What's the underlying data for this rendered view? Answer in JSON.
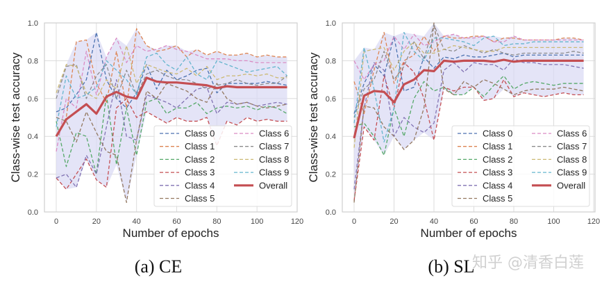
{
  "colors": {
    "classes": [
      "#4C72B0",
      "#DD8452",
      "#55A868",
      "#C44E52",
      "#8172B3",
      "#937860",
      "#DA8BC3",
      "#8C8C8C",
      "#CCB974",
      "#64B5CD"
    ],
    "overall": "#C44E52",
    "band": "#d9d9f3",
    "grid": "#dcdcdc"
  },
  "watermark": "知乎 @清香白莲",
  "chart_data": [
    {
      "type": "line",
      "caption": "(a) CE",
      "xlabel": "Number of epochs",
      "ylabel": "Class-wise test accuracy",
      "xlim": [
        -5,
        120
      ],
      "ylim": [
        0.0,
        1.0
      ],
      "xticks": [
        "0",
        "20",
        "40",
        "60",
        "80",
        "100",
        "120"
      ],
      "yticks": [
        "0.0",
        "0.2",
        "0.4",
        "0.6",
        "0.8",
        "1.0"
      ],
      "grid": true,
      "legend_position": "lower-right",
      "shaded_band": "min-max across classes",
      "x": [
        0,
        5,
        10,
        15,
        20,
        25,
        30,
        35,
        40,
        45,
        50,
        55,
        60,
        65,
        70,
        75,
        80,
        85,
        90,
        95,
        100,
        105,
        110,
        115
      ],
      "series": [
        {
          "name": "Class 0",
          "style": "dashed",
          "values": [
            0.53,
            0.55,
            0.62,
            0.7,
            0.95,
            0.7,
            0.6,
            0.55,
            0.63,
            0.78,
            0.65,
            0.75,
            0.7,
            0.72,
            0.75,
            0.76,
            0.63,
            0.68,
            0.68,
            0.68,
            0.68,
            0.69,
            0.68,
            0.67
          ]
        },
        {
          "name": "Class 1",
          "style": "dashed",
          "values": [
            0.4,
            0.5,
            0.9,
            0.91,
            0.68,
            0.58,
            0.85,
            0.55,
            0.97,
            0.88,
            0.85,
            0.86,
            0.88,
            0.82,
            0.86,
            0.83,
            0.85,
            0.83,
            0.83,
            0.84,
            0.82,
            0.83,
            0.82,
            0.82
          ]
        },
        {
          "name": "Class 2",
          "style": "dashed",
          "values": [
            0.48,
            0.24,
            0.42,
            0.4,
            0.2,
            0.62,
            0.25,
            0.55,
            0.3,
            0.58,
            0.6,
            0.52,
            0.55,
            0.55,
            0.58,
            0.52,
            0.55,
            0.56,
            0.55,
            0.56,
            0.54,
            0.56,
            0.55,
            0.52
          ]
        },
        {
          "name": "Class 3",
          "style": "dashed",
          "values": [
            0.18,
            0.12,
            0.2,
            0.28,
            0.17,
            0.13,
            0.55,
            0.6,
            0.5,
            0.53,
            0.5,
            0.47,
            0.5,
            0.48,
            0.48,
            0.5,
            0.35,
            0.48,
            0.46,
            0.5,
            0.48,
            0.49,
            0.48,
            0.48
          ]
        },
        {
          "name": "Class 4",
          "style": "dashed",
          "values": [
            0.18,
            0.2,
            0.13,
            0.3,
            0.2,
            0.45,
            0.7,
            0.4,
            0.38,
            0.62,
            0.6,
            0.58,
            0.55,
            0.6,
            0.65,
            0.66,
            0.52,
            0.58,
            0.57,
            0.58,
            0.56,
            0.57,
            0.58,
            0.57
          ]
        },
        {
          "name": "Class 5",
          "style": "dashed",
          "values": [
            0.5,
            0.48,
            0.37,
            0.53,
            0.42,
            0.32,
            0.3,
            0.05,
            0.38,
            0.64,
            0.6,
            0.68,
            0.66,
            0.64,
            0.6,
            0.58,
            0.68,
            0.6,
            0.57,
            0.58,
            0.56,
            0.55,
            0.56,
            0.57
          ]
        },
        {
          "name": "Class 6",
          "style": "dashed",
          "values": [
            0.32,
            0.6,
            0.55,
            0.85,
            0.62,
            0.82,
            0.92,
            0.79,
            0.88,
            0.85,
            0.86,
            0.88,
            0.86,
            0.85,
            0.83,
            0.81,
            0.81,
            0.81,
            0.8,
            0.8,
            0.79,
            0.79,
            0.79,
            0.79
          ]
        },
        {
          "name": "Class 7",
          "style": "dashed",
          "values": [
            0.6,
            0.77,
            0.78,
            0.6,
            0.72,
            0.78,
            0.6,
            0.75,
            0.62,
            0.73,
            0.75,
            0.72,
            0.7,
            0.7,
            0.68,
            0.65,
            0.67,
            0.68,
            0.7,
            0.68,
            0.67,
            0.68,
            0.68,
            0.72
          ]
        },
        {
          "name": "Class 8",
          "style": "dashed",
          "values": [
            0.63,
            0.78,
            0.77,
            0.63,
            0.6,
            0.7,
            0.65,
            0.88,
            0.68,
            0.78,
            0.76,
            0.74,
            0.73,
            0.76,
            0.72,
            0.77,
            0.7,
            0.72,
            0.72,
            0.73,
            0.72,
            0.73,
            0.71,
            0.71
          ]
        },
        {
          "name": "Class 9",
          "style": "dashed",
          "values": [
            0.45,
            0.72,
            0.6,
            0.62,
            0.66,
            0.8,
            0.75,
            0.7,
            0.62,
            0.82,
            0.84,
            0.78,
            0.75,
            0.82,
            0.73,
            0.7,
            0.8,
            0.78,
            0.76,
            0.74,
            0.75,
            0.76,
            0.77,
            0.72
          ]
        },
        {
          "name": "Overall",
          "style": "solid",
          "values": [
            0.4,
            0.49,
            0.53,
            0.57,
            0.52,
            0.61,
            0.635,
            0.61,
            0.6,
            0.71,
            0.69,
            0.685,
            0.685,
            0.68,
            0.675,
            0.67,
            0.655,
            0.665,
            0.66,
            0.66,
            0.66,
            0.66,
            0.66,
            0.66
          ]
        }
      ]
    },
    {
      "type": "line",
      "caption": "(b) SL",
      "xlabel": "Number of epochs",
      "ylabel": "Class-wise test accuracy",
      "xlim": [
        -5,
        120
      ],
      "ylim": [
        0.0,
        1.0
      ],
      "xticks": [
        "0",
        "20",
        "40",
        "60",
        "80",
        "100",
        "120"
      ],
      "yticks": [
        "0.0",
        "0.2",
        "0.4",
        "0.6",
        "0.8",
        "1.0"
      ],
      "grid": true,
      "legend_position": "lower-right",
      "shaded_band": "min-max across classes",
      "x": [
        0,
        5,
        10,
        15,
        20,
        25,
        30,
        35,
        40,
        45,
        50,
        55,
        60,
        65,
        70,
        75,
        80,
        85,
        90,
        95,
        100,
        105,
        110,
        115
      ],
      "series": [
        {
          "name": "Class 0",
          "style": "dashed",
          "values": [
            0.52,
            0.68,
            0.78,
            0.72,
            0.93,
            0.64,
            0.66,
            0.82,
            0.76,
            0.82,
            0.81,
            0.83,
            0.82,
            0.82,
            0.83,
            0.84,
            0.82,
            0.83,
            0.83,
            0.83,
            0.83,
            0.83,
            0.83,
            0.83
          ]
        },
        {
          "name": "Class 1",
          "style": "dashed",
          "values": [
            0.69,
            0.52,
            0.75,
            0.95,
            0.68,
            0.8,
            0.83,
            0.93,
            0.85,
            0.93,
            0.92,
            0.92,
            0.93,
            0.93,
            0.9,
            0.92,
            0.92,
            0.91,
            0.91,
            0.91,
            0.91,
            0.92,
            0.92,
            0.91
          ]
        },
        {
          "name": "Class 2",
          "style": "dashed",
          "values": [
            0.45,
            0.47,
            0.4,
            0.3,
            0.55,
            0.4,
            0.6,
            0.69,
            0.64,
            0.66,
            0.62,
            0.62,
            0.66,
            0.61,
            0.67,
            0.72,
            0.65,
            0.68,
            0.69,
            0.68,
            0.67,
            0.68,
            0.68,
            0.68
          ]
        },
        {
          "name": "Class 3",
          "style": "dashed",
          "values": [
            0.06,
            0.45,
            0.38,
            0.72,
            0.55,
            0.79,
            0.74,
            0.6,
            0.38,
            0.66,
            0.64,
            0.66,
            0.66,
            0.59,
            0.6,
            0.7,
            0.61,
            0.63,
            0.62,
            0.61,
            0.62,
            0.63,
            0.62,
            0.62
          ]
        },
        {
          "name": "Class 4",
          "style": "dashed",
          "values": [
            0.12,
            0.55,
            0.79,
            0.75,
            0.4,
            0.5,
            0.45,
            0.42,
            0.47,
            0.75,
            0.79,
            0.74,
            0.79,
            0.78,
            0.78,
            0.75,
            0.81,
            0.79,
            0.79,
            0.78,
            0.78,
            0.78,
            0.77,
            0.76
          ]
        },
        {
          "name": "Class 5",
          "style": "dashed",
          "values": [
            0.05,
            0.56,
            0.55,
            0.45,
            0.4,
            0.33,
            0.38,
            0.55,
            1.0,
            0.65,
            0.62,
            0.69,
            0.66,
            0.7,
            0.68,
            0.65,
            0.62,
            0.64,
            0.65,
            0.65,
            0.65,
            0.66,
            0.65,
            0.64
          ]
        },
        {
          "name": "Class 6",
          "style": "dashed",
          "values": [
            0.8,
            0.7,
            0.78,
            0.8,
            0.93,
            0.86,
            0.94,
            0.88,
            0.9,
            0.93,
            0.94,
            0.92,
            0.92,
            0.93,
            0.9,
            0.9,
            0.93,
            0.91,
            0.91,
            0.91,
            0.91,
            0.91,
            0.91,
            0.91
          ]
        },
        {
          "name": "Class 7",
          "style": "dashed",
          "values": [
            0.5,
            0.65,
            0.7,
            0.85,
            0.7,
            0.77,
            0.9,
            0.81,
            0.99,
            0.86,
            0.85,
            0.88,
            0.86,
            0.84,
            0.86,
            0.84,
            0.83,
            0.84,
            0.84,
            0.84,
            0.84,
            0.84,
            0.85,
            0.84
          ]
        },
        {
          "name": "Class 8",
          "style": "dashed",
          "values": [
            0.34,
            0.85,
            0.86,
            0.87,
            0.75,
            0.85,
            0.9,
            0.84,
            0.84,
            0.86,
            0.88,
            0.87,
            0.86,
            0.85,
            0.85,
            0.87,
            0.87,
            0.87,
            0.87,
            0.87,
            0.87,
            0.87,
            0.87,
            0.87
          ]
        },
        {
          "name": "Class 9",
          "style": "dashed",
          "values": [
            0.47,
            0.87,
            0.65,
            0.37,
            0.55,
            0.95,
            0.85,
            0.8,
            0.92,
            0.92,
            0.91,
            0.9,
            0.88,
            0.92,
            0.93,
            0.88,
            0.89,
            0.89,
            0.9,
            0.9,
            0.9,
            0.9,
            0.9,
            0.9
          ]
        },
        {
          "name": "Overall",
          "style": "solid",
          "values": [
            0.39,
            0.615,
            0.64,
            0.635,
            0.58,
            0.675,
            0.7,
            0.75,
            0.745,
            0.8,
            0.795,
            0.8,
            0.8,
            0.8,
            0.795,
            0.805,
            0.795,
            0.8,
            0.8,
            0.8,
            0.8,
            0.8,
            0.8,
            0.8
          ]
        }
      ]
    }
  ]
}
